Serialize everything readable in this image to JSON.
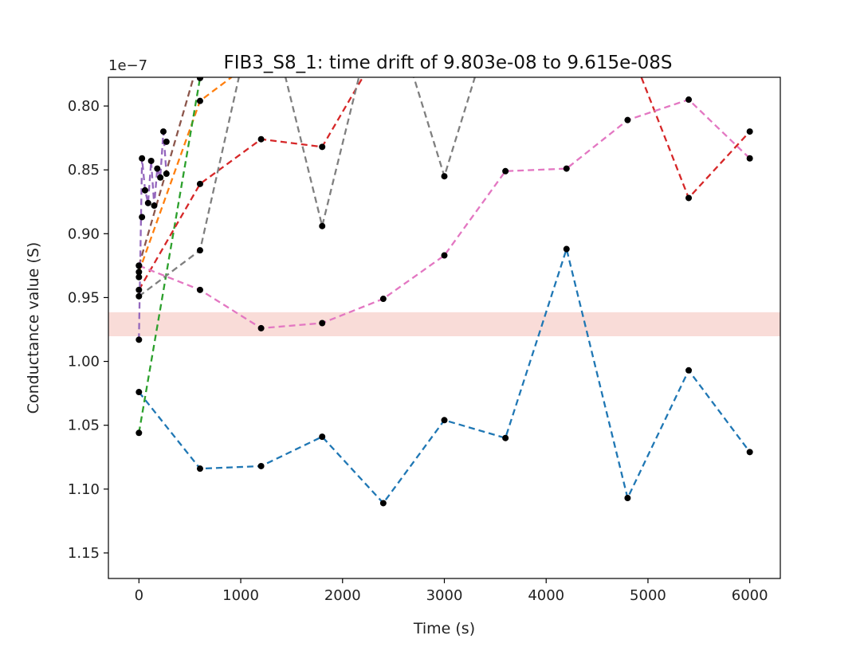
{
  "chart_data": {
    "type": "line",
    "title": "FIB3_S8_1: time drift of 9.803e-08 to 9.615e-08S",
    "xlabel": "Time (s)",
    "ylabel": "Conductance value (S)",
    "y_offset_label": "1e−7",
    "y_inverted": true,
    "xlim": [
      -300,
      6300
    ],
    "ylim": [
      0.7775,
      1.17
    ],
    "x_ticks": [
      0,
      1000,
      2000,
      3000,
      4000,
      5000,
      6000
    ],
    "x_tick_labels": [
      "0",
      "1000",
      "2000",
      "3000",
      "4000",
      "5000",
      "6000"
    ],
    "y_ticks": [
      0.8,
      0.85,
      0.9,
      0.95,
      1.0,
      1.05,
      1.1,
      1.15
    ],
    "y_tick_labels": [
      "0.80",
      "0.85",
      "0.90",
      "0.95",
      "1.00",
      "1.05",
      "1.10",
      "1.15"
    ],
    "band": {
      "y_from": 0.9615,
      "y_to": 0.9803,
      "color": "#f9dcd8"
    },
    "marker_color": "#000000",
    "series": [
      {
        "color": "#1f77b4",
        "x": [
          0,
          600,
          1200,
          1800,
          2400,
          3000,
          3600,
          4200,
          4800,
          5400,
          6000
        ],
        "y": [
          1.024,
          1.084,
          1.082,
          1.059,
          1.111,
          1.046,
          1.06,
          0.912,
          1.107,
          1.007,
          1.071
        ]
      },
      {
        "color": "#ff7f0e",
        "x": [
          0,
          600,
          1200
        ],
        "y": [
          0.93,
          0.796,
          0.76
        ]
      },
      {
        "color": "#2ca02c",
        "x": [
          0,
          600
        ],
        "y": [
          1.056,
          0.778
        ]
      },
      {
        "color": "#d62728",
        "x": [
          0,
          600,
          1200,
          1800,
          2400,
          4800,
          5400,
          6000
        ],
        "y": [
          0.944,
          0.861,
          0.826,
          0.832,
          0.75,
          0.75,
          0.872,
          0.82
        ]
      },
      {
        "color": "#8c564b",
        "x": [
          0,
          600
        ],
        "y": [
          0.925,
          0.76
        ]
      },
      {
        "color": "#9467bd",
        "x": [
          0,
          30,
          60,
          90,
          120,
          150,
          180,
          210,
          240,
          270
        ],
        "y": [
          0.983,
          0.841,
          0.866,
          0.876,
          0.843,
          0.878,
          0.849,
          0.856,
          0.82,
          0.853
        ]
      },
      {
        "color": "#7f7f7f",
        "x": [
          0,
          600,
          1200,
          1800,
          2400,
          3000,
          3600
        ],
        "y": [
          0.949,
          0.913,
          0.7,
          0.894,
          0.7,
          0.855,
          0.7
        ]
      },
      {
        "color": "#e377c2",
        "x": [
          0,
          600,
          1200,
          1800,
          2400,
          3000,
          3600,
          4200,
          4800,
          5400,
          6000
        ],
        "y": [
          0.925,
          0.944,
          0.974,
          0.97,
          0.951,
          0.917,
          0.851,
          0.849,
          0.811,
          0.795,
          0.841
        ]
      }
    ],
    "extra_markers": {
      "x": [
        0,
        30,
        270,
        600
      ],
      "y": [
        0.934,
        0.887,
        0.828,
        0.778
      ]
    }
  }
}
